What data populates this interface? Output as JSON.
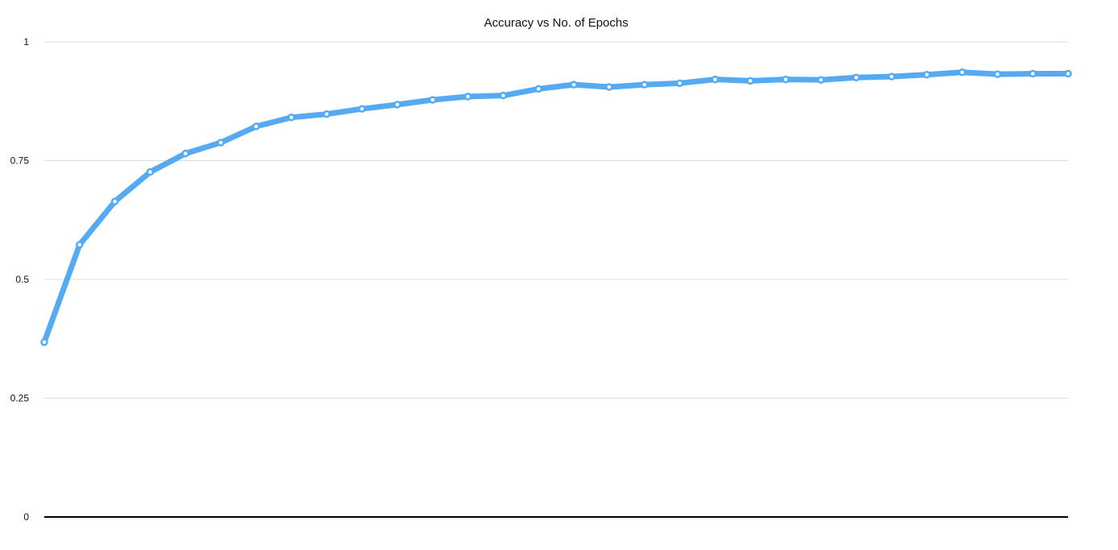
{
  "chart_data": {
    "type": "line",
    "title": "Accuracy vs No. of Epochs",
    "xlabel": "",
    "ylabel": "",
    "ylim": [
      0,
      1
    ],
    "yticks": [
      {
        "value": 0,
        "label": "0"
      },
      {
        "value": 0.25,
        "label": "0.25"
      },
      {
        "value": 0.5,
        "label": "0.5"
      },
      {
        "value": 0.75,
        "label": "0.75"
      },
      {
        "value": 1,
        "label": "1"
      }
    ],
    "grid": true,
    "legend": "none",
    "x": [
      1,
      2,
      3,
      4,
      5,
      6,
      7,
      8,
      9,
      10,
      11,
      12,
      13,
      14,
      15,
      16,
      17,
      18,
      19,
      20,
      21,
      22,
      23,
      24,
      25,
      26,
      27,
      28,
      29,
      30
    ],
    "series": [
      {
        "color": "#55aaf2",
        "values": [
          0.368,
          0.573,
          0.664,
          0.726,
          0.765,
          0.788,
          0.822,
          0.841,
          0.848,
          0.859,
          0.868,
          0.878,
          0.885,
          0.887,
          0.901,
          0.91,
          0.905,
          0.91,
          0.913,
          0.921,
          0.918,
          0.921,
          0.92,
          0.925,
          0.927,
          0.931,
          0.936,
          0.932,
          0.933,
          0.933
        ]
      }
    ]
  }
}
